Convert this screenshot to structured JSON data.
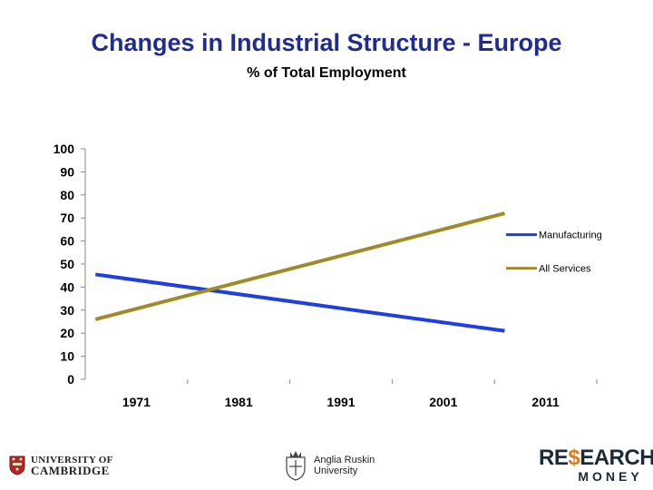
{
  "chart_data": {
    "type": "line",
    "title": "Changes in Industrial Structure - Europe",
    "subtitle": "% of Total Employment",
    "categories": [
      "1971",
      "1981",
      "1991",
      "2001",
      "2011"
    ],
    "x": [
      1971,
      1981,
      1991,
      2001,
      2011
    ],
    "y_ticks": [
      "100",
      "90",
      "80",
      "70",
      "60",
      "50",
      "40",
      "30",
      "20",
      "10",
      "0"
    ],
    "ylim": [
      0,
      100
    ],
    "xlabel": "",
    "ylabel": "",
    "series": [
      {
        "name": "Manufacturing",
        "color": "#1f3fe0",
        "x": [
          1971,
          2011
        ],
        "values": [
          45.5,
          21
        ]
      },
      {
        "name": "All Services",
        "color": "#a08b2a",
        "x": [
          1971,
          2011
        ],
        "values": [
          26,
          72
        ]
      }
    ],
    "legend_position": "right"
  },
  "logos": {
    "cambridge_line1": "UNIVERSITY OF",
    "cambridge_line2": "CAMBRIDGE",
    "anglia_line1": "Anglia Ruskin",
    "anglia_line2": "University",
    "rm_re": "RE",
    "rm_dollar": "$",
    "rm_earch": "EARCH",
    "rm_money": "MONEY"
  }
}
